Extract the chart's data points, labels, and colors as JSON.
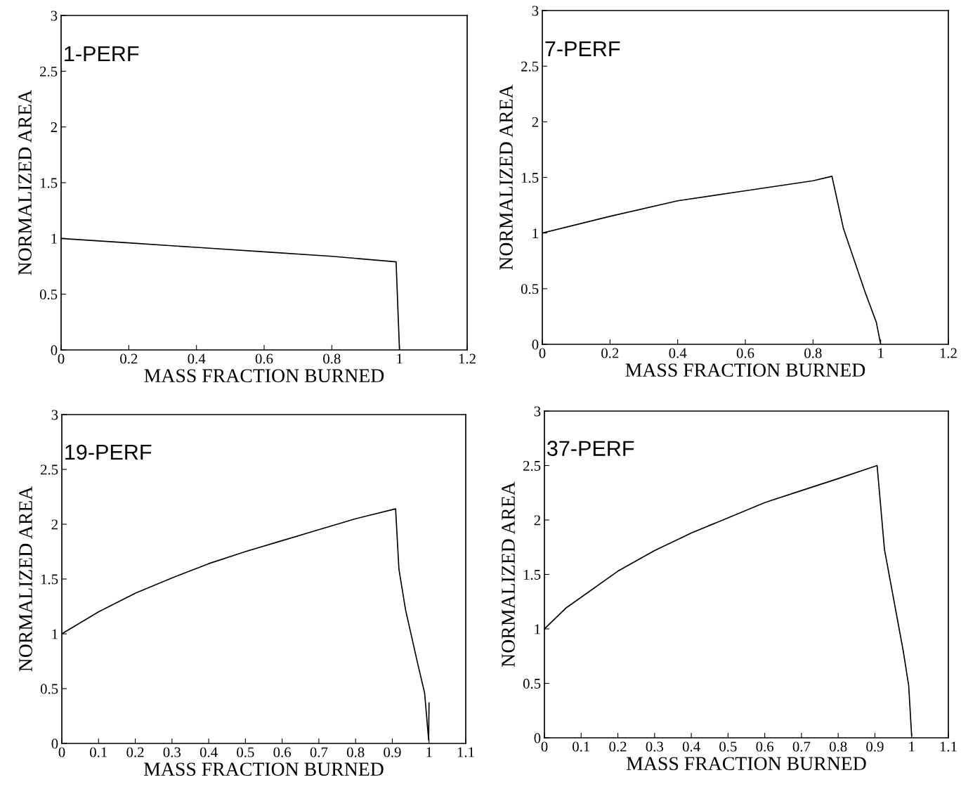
{
  "chart_data": [
    {
      "type": "line",
      "xlabel": "MASS FRACTION BURNED",
      "ylabel": "NORMALIZED AREA",
      "annotations": [
        "1-PERF"
      ],
      "xlim": [
        0,
        1.2
      ],
      "ylim": [
        0,
        3
      ],
      "xticks": [
        0,
        0.2,
        0.4,
        0.6,
        0.8,
        1,
        1.2
      ],
      "yticks": [
        0,
        0.5,
        1,
        1.5,
        2,
        2.5,
        3
      ],
      "grid": false,
      "legend": false,
      "marker": "none",
      "line_style": "solid",
      "series": [
        {
          "color": "#000000",
          "x": [
            0,
            0.2,
            0.4,
            0.6,
            0.8,
            0.99,
            1.0
          ],
          "values": [
            1.0,
            0.96,
            0.92,
            0.88,
            0.84,
            0.79,
            0.0
          ]
        }
      ]
    },
    {
      "type": "line",
      "xlabel": "MASS FRACTION BURNED",
      "ylabel": "NORMALIZED AREA",
      "annotations": [
        "7-PERF"
      ],
      "xlim": [
        0,
        1.2
      ],
      "ylim": [
        0,
        3
      ],
      "xticks": [
        0,
        0.2,
        0.4,
        0.6,
        0.8,
        1,
        1.2
      ],
      "yticks": [
        0,
        0.5,
        1,
        1.5,
        2,
        2.5,
        3
      ],
      "grid": false,
      "legend": false,
      "marker": "none",
      "line_style": "solid",
      "series": [
        {
          "color": "#000000",
          "x": [
            0,
            0.2,
            0.4,
            0.6,
            0.8,
            0.856,
            0.89,
            0.955,
            0.987,
            1.0
          ],
          "values": [
            1.0,
            1.15,
            1.29,
            1.38,
            1.47,
            1.51,
            1.04,
            0.46,
            0.2,
            0.0
          ]
        }
      ]
    },
    {
      "type": "line",
      "xlabel": "MASS FRACTION BURNED",
      "ylabel": "NORMALIZED AREA",
      "annotations": [
        "19-PERF"
      ],
      "xlim": [
        0,
        1.1
      ],
      "ylim": [
        0,
        3
      ],
      "xticks": [
        0,
        0.1,
        0.2,
        0.3,
        0.4,
        0.5,
        0.6,
        0.7,
        0.8,
        0.9,
        1,
        1.1
      ],
      "yticks": [
        0,
        0.5,
        1,
        1.5,
        2,
        2.5,
        3
      ],
      "grid": false,
      "legend": false,
      "marker": "none",
      "line_style": "solid",
      "series": [
        {
          "color": "#000000",
          "x": [
            0,
            0.1,
            0.2,
            0.3,
            0.4,
            0.5,
            0.6,
            0.7,
            0.8,
            0.909,
            0.918,
            0.936,
            0.969,
            0.988,
            0.999,
            1.0
          ],
          "values": [
            1.0,
            1.2,
            1.37,
            1.51,
            1.64,
            1.75,
            1.85,
            1.95,
            2.05,
            2.14,
            1.59,
            1.22,
            0.73,
            0.46,
            0.03,
            0.37
          ]
        }
      ]
    },
    {
      "type": "line",
      "xlabel": "MASS FRACTION BURNED",
      "ylabel": "NORMALIZED AREA",
      "annotations": [
        "37-PERF"
      ],
      "xlim": [
        0,
        1.1
      ],
      "ylim": [
        0,
        3
      ],
      "xticks": [
        0,
        0.1,
        0.2,
        0.3,
        0.4,
        0.5,
        0.6,
        0.7,
        0.8,
        0.9,
        1,
        1.1
      ],
      "yticks": [
        0,
        0.5,
        1,
        1.5,
        2,
        2.5,
        3
      ],
      "grid": false,
      "legend": false,
      "marker": "none",
      "line_style": "solid",
      "series": [
        {
          "color": "#000000",
          "x": [
            0,
            0.058,
            0.1,
            0.2,
            0.3,
            0.4,
            0.5,
            0.6,
            0.7,
            0.8,
            0.906,
            0.926,
            0.977,
            0.992,
            1.0
          ],
          "values": [
            1.0,
            1.19,
            1.29,
            1.53,
            1.72,
            1.88,
            2.02,
            2.16,
            2.27,
            2.38,
            2.5,
            1.73,
            0.8,
            0.48,
            0.02
          ]
        }
      ]
    }
  ]
}
